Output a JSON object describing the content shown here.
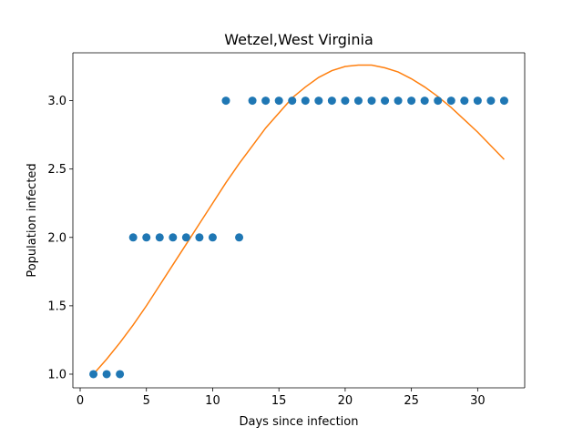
{
  "chart_data": {
    "type": "scatter",
    "title": "Wetzel,West Virginia",
    "xlabel": "Days since infection",
    "ylabel": "Population infected",
    "xlim": [
      -0.55,
      33.55
    ],
    "ylim": [
      0.9,
      3.35
    ],
    "xticks": [
      0,
      5,
      10,
      15,
      20,
      25,
      30
    ],
    "yticks": [
      1.0,
      1.5,
      2.0,
      2.5,
      3.0
    ],
    "xtick_labels": [
      "0",
      "5",
      "10",
      "15",
      "20",
      "25",
      "30"
    ],
    "ytick_labels": [
      "1.0",
      "1.5",
      "2.0",
      "2.5",
      "3.0"
    ],
    "grid": false,
    "legend": null,
    "series": [
      {
        "kind": "scatter",
        "color": "#1f77b4",
        "x": [
          1,
          2,
          3,
          4,
          5,
          6,
          7,
          8,
          9,
          10,
          11,
          12,
          13,
          14,
          15,
          16,
          17,
          18,
          19,
          20,
          21,
          22,
          23,
          24,
          25,
          26,
          27,
          28,
          29,
          30,
          31,
          32
        ],
        "y": [
          1,
          1,
          1,
          2,
          2,
          2,
          2,
          2,
          2,
          2,
          3,
          2,
          3,
          3,
          3,
          3,
          3,
          3,
          3,
          3,
          3,
          3,
          3,
          3,
          3,
          3,
          3,
          3,
          3,
          3,
          3,
          3
        ]
      },
      {
        "kind": "line",
        "color": "#ff7f0e",
        "x": [
          1,
          2,
          3,
          4,
          5,
          6,
          7,
          8,
          9,
          10,
          11,
          12,
          13,
          14,
          15,
          16,
          17,
          18,
          19,
          20,
          21,
          22,
          23,
          24,
          25,
          26,
          27,
          28,
          29,
          30,
          31,
          32
        ],
        "y": [
          1.0,
          1.11,
          1.23,
          1.36,
          1.5,
          1.65,
          1.8,
          1.95,
          2.1,
          2.25,
          2.4,
          2.54,
          2.67,
          2.8,
          2.91,
          3.02,
          3.1,
          3.17,
          3.22,
          3.25,
          3.26,
          3.26,
          3.24,
          3.21,
          3.16,
          3.1,
          3.03,
          2.95,
          2.86,
          2.77,
          2.67,
          2.57
        ]
      }
    ]
  }
}
